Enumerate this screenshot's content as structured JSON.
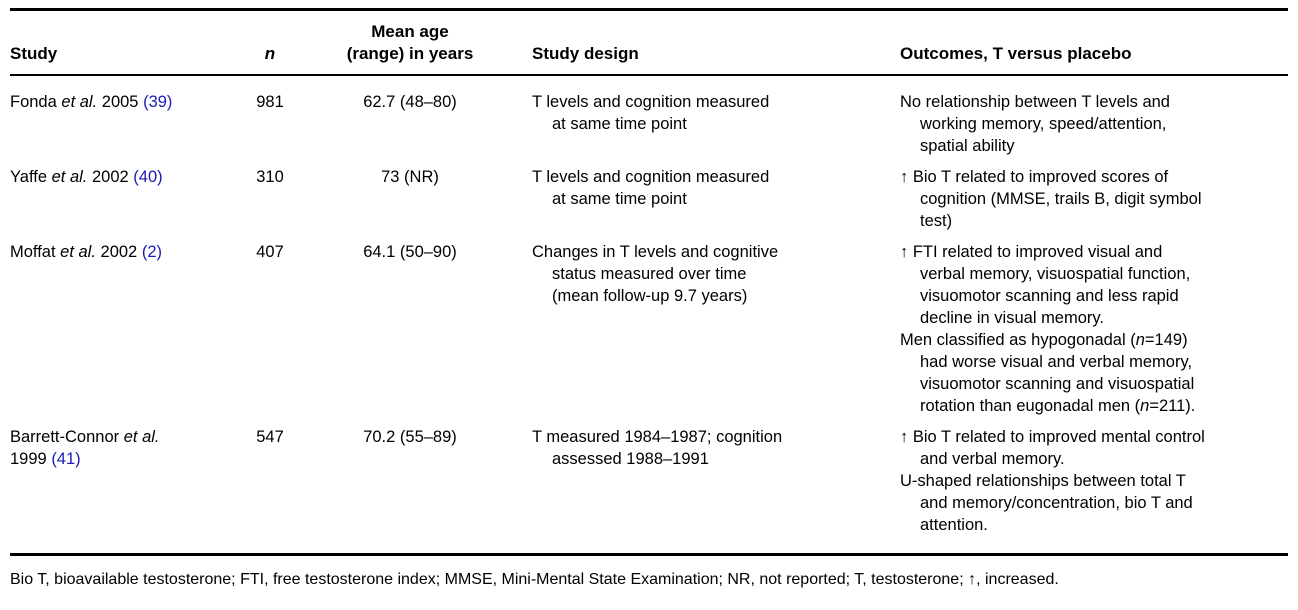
{
  "table": {
    "header": {
      "study": "Study",
      "n": "n",
      "mean_age_line1": "Mean age",
      "mean_age_line2": "(range) in years",
      "design": "Study design",
      "outcomes": "Outcomes, T versus placebo"
    },
    "rows": [
      {
        "study": {
          "authors": "Fonda",
          "etal": "et al.",
          "year": "2005",
          "ref": "(39)"
        },
        "n": "981",
        "mean_age": "62.7 (48–80)",
        "design_lines": [
          "T levels and cognition measured",
          "at same time point"
        ],
        "outcome_paragraphs": [
          [
            "No relationship between T levels and",
            "working memory, speed/attention,",
            "spatial ability"
          ]
        ]
      },
      {
        "study": {
          "authors": "Yaffe",
          "etal": "et al.",
          "year": "2002",
          "ref": "(40)"
        },
        "n": "310",
        "mean_age": "73 (NR)",
        "design_lines": [
          "T levels and cognition measured",
          "at same time point"
        ],
        "outcome_paragraphs": [
          [
            "↑ Bio T related to improved scores of",
            "cognition (MMSE, trails B, digit symbol",
            "test)"
          ]
        ]
      },
      {
        "study": {
          "authors": "Moffat",
          "etal": "et al.",
          "year": "2002",
          "ref": "(2)"
        },
        "n": "407",
        "mean_age": "64.1 (50–90)",
        "design_lines": [
          "Changes in T levels and cognitive",
          "status measured over time",
          "(mean follow-up 9.7 years)"
        ],
        "outcome_paragraphs": [
          [
            "↑ FTI related to improved visual and",
            "verbal memory, visuospatial function,",
            "visuomotor scanning and less rapid",
            "decline in visual memory."
          ],
          [
            "Men classified as hypogonadal (<i>n</i>=149)",
            "had worse visual and verbal memory,",
            "visuomotor scanning and visuospatial",
            "rotation than eugonadal men (<i>n</i>=211)."
          ]
        ]
      },
      {
        "study": {
          "authors": "Barrett-Connor",
          "etal": "et al.",
          "year": "1999",
          "ref": "(41)"
        },
        "n": "547",
        "mean_age": "70.2 (55–89)",
        "design_lines": [
          "T measured 1984–1987; cognition",
          "assessed 1988–1991"
        ],
        "outcome_paragraphs": [
          [
            "↑ Bio T related to improved mental control",
            "and verbal memory."
          ],
          [
            "U-shaped relationships between total T",
            "and memory/concentration, bio T and",
            "attention."
          ]
        ]
      }
    ],
    "footnote": "Bio T, bioavailable testosterone; FTI, free testosterone index; MMSE, Mini-Mental State Examination; NR, not reported; T, testosterone; ↑, increased."
  }
}
